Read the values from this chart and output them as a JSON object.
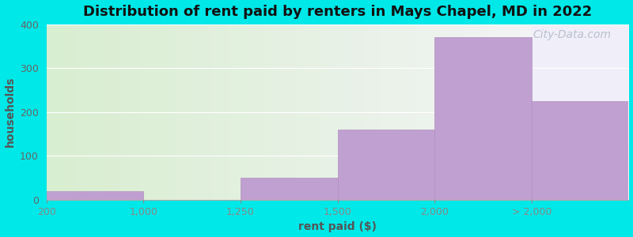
{
  "title": "Distribution of rent paid by renters in Mays Chapel, MD in 2022",
  "xlabel": "rent paid ($)",
  "ylabel": "households",
  "tick_labels": [
    "200",
    "1,000",
    "1,250",
    "1,500",
    "2,000",
    "> 2,000"
  ],
  "values": [
    20,
    0,
    50,
    160,
    370,
    225
  ],
  "bar_color": "#c0a0d0",
  "bar_edge_color": "#b090c0",
  "background_color": "#00e8e8",
  "plot_bg_left_color": "#d8eed0",
  "plot_bg_right_color": "#f0eef8",
  "last_bar_bg_color": "#f0eef8",
  "ylim": [
    0,
    400
  ],
  "yticks": [
    0,
    100,
    200,
    300,
    400
  ],
  "title_fontsize": 13,
  "axis_label_fontsize": 10,
  "tick_fontsize": 9,
  "watermark_text": "City-Data.com",
  "watermark_color": "#b0b8c8",
  "watermark_fontsize": 10
}
